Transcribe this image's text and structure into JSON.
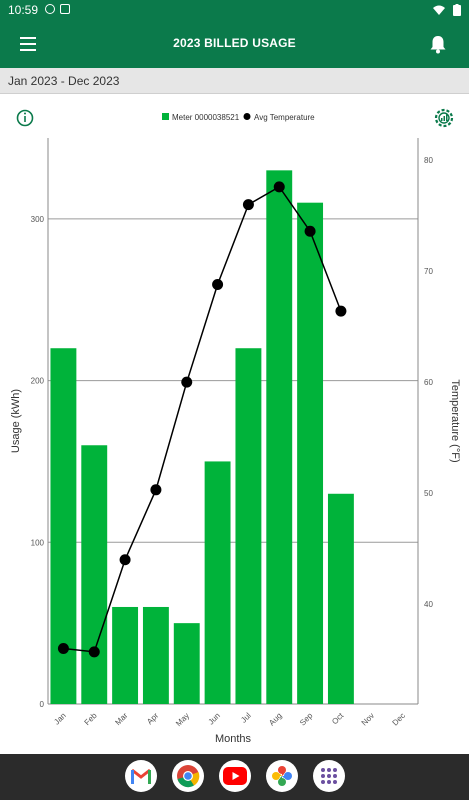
{
  "status_bar": {
    "time": "10:59"
  },
  "app_bar": {
    "title": "2023 BILLED USAGE"
  },
  "date_range": "Jan 2023 - Dec 2023",
  "colors": {
    "brand": "#0b7a4b",
    "bar": "#00b33a",
    "line": "#000000"
  },
  "icons": [
    "menu-icon",
    "bell-icon",
    "info-icon",
    "chart-settings-icon"
  ],
  "dock_apps": [
    {
      "name": "gmail",
      "glyph": "M"
    },
    {
      "name": "chrome",
      "glyph": ""
    },
    {
      "name": "youtube",
      "glyph": "▶"
    },
    {
      "name": "photos",
      "glyph": ""
    },
    {
      "name": "app-drawer",
      "glyph": ""
    }
  ],
  "chart_data": {
    "type": "bar",
    "categories": [
      "Jan",
      "Feb",
      "Mar",
      "Apr",
      "May",
      "Jun",
      "Jul",
      "Aug",
      "Sep",
      "Oct",
      "Nov",
      "Dec"
    ],
    "series": [
      {
        "name": "Meter 0000038521",
        "type": "bar",
        "axis": "left",
        "values": [
          220,
          160,
          60,
          60,
          50,
          150,
          220,
          330,
          310,
          130,
          null,
          null
        ]
      },
      {
        "name": "Avg Temperature",
        "type": "line",
        "axis": "right",
        "values": [
          36,
          35.7,
          44,
          50.3,
          60,
          68.8,
          76,
          77.6,
          73.6,
          66.4,
          null,
          null
        ]
      }
    ],
    "xlabel": "Months",
    "ylabel": "Usage (kWh)",
    "y2label": "Temperature (°F)",
    "ylim": [
      0,
      350
    ],
    "y2lim": [
      31,
      82
    ],
    "yticks": [
      0,
      100,
      200,
      300
    ],
    "y2ticks": [
      40,
      50,
      60,
      70,
      80
    ],
    "grid": true,
    "legend": "top-center"
  }
}
